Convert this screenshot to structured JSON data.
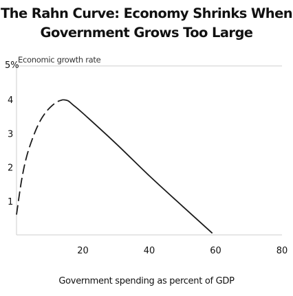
{
  "chart_data": {
    "type": "line",
    "title": "The Rahn Curve: Economy Shrinks When Government Grows Too Large",
    "title_lines": [
      "The Rahn Curve: Economy Shrinks When",
      "Government Grows Too Large"
    ],
    "ylabel": "Economic growth rate",
    "xlabel": "Government spending as percent of GDP",
    "xlim": [
      0,
      80
    ],
    "ylim": [
      0,
      5
    ],
    "xticks": [
      {
        "value": 20,
        "label": "20"
      },
      {
        "value": 40,
        "label": "40"
      },
      {
        "value": 60,
        "label": "60"
      },
      {
        "value": 80,
        "label": "80"
      }
    ],
    "yticks": [
      {
        "value": 1,
        "label": "1"
      },
      {
        "value": 2,
        "label": "2"
      },
      {
        "value": 3,
        "label": "3"
      },
      {
        "value": 4,
        "label": "4"
      },
      {
        "value": 5,
        "label": "5%"
      }
    ],
    "series": [
      {
        "style": "dashed",
        "points": [
          [
            0,
            0.6
          ],
          [
            1.5,
            1.6
          ],
          [
            3,
            2.3
          ],
          [
            5,
            2.9
          ],
          [
            7,
            3.35
          ],
          [
            9,
            3.65
          ],
          [
            11,
            3.85
          ],
          [
            12.5,
            3.95
          ],
          [
            14,
            4.0
          ]
        ]
      },
      {
        "style": "solid",
        "points": [
          [
            14,
            4.0
          ],
          [
            15.5,
            3.97
          ],
          [
            17,
            3.85
          ],
          [
            20,
            3.6
          ],
          [
            30,
            2.7
          ],
          [
            40,
            1.75
          ],
          [
            50,
            0.85
          ],
          [
            59,
            0.05
          ]
        ]
      }
    ],
    "grid": false,
    "colors": {
      "line": "#1a1a1a",
      "axis": "#cccccc",
      "text": "#111111"
    }
  }
}
